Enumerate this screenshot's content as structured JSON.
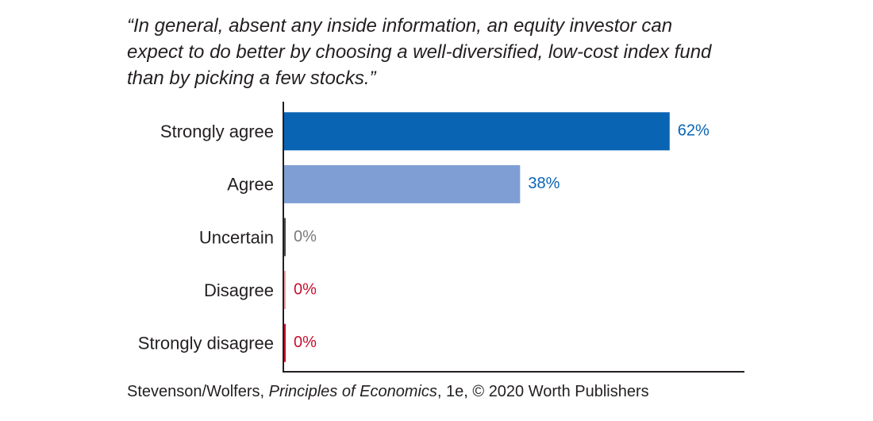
{
  "chart_data": {
    "type": "bar",
    "orientation": "horizontal",
    "title": "“In general, absent any inside information, an equity investor can expect to do better by choosing a well-diversified, low-cost index fund than by picking a few stocks.”",
    "categories": [
      "Strongly agree",
      "Agree",
      "Uncertain",
      "Disagree",
      "Strongly disagree"
    ],
    "values": [
      62,
      38,
      0,
      0,
      0
    ],
    "value_labels": [
      "62%",
      "38%",
      "0%",
      "0%",
      "0%"
    ],
    "colors": [
      "#0a64b4",
      "#7f9fd4",
      "#4a4a4a",
      "#f0a0a0",
      "#c8102e"
    ],
    "label_colors": [
      "#0a64b4",
      "#0a64b4",
      "#7a7a7a",
      "#c8102e",
      "#c8102e"
    ],
    "xlim": [
      0,
      74
    ],
    "source": [
      "Stevenson/Wolfers, ",
      "Principles of Economics",
      ", 1e, © 2020 Worth Publishers"
    ]
  }
}
